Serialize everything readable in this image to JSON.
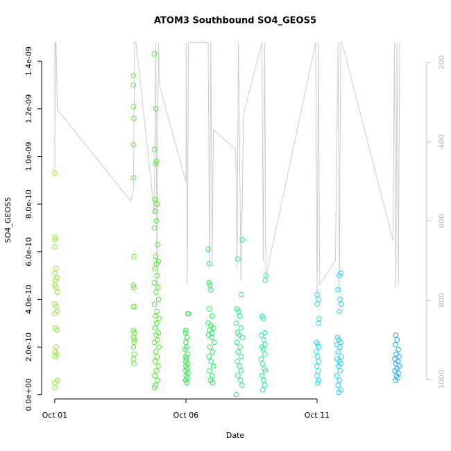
{
  "chart_data": {
    "type": "scatter",
    "title": "ATOM3 Southbound SO4_GEOS5",
    "x_label": "Date",
    "y_label": "SO4_GEOS5",
    "xlim": [
      0.5,
      15.18
    ],
    "ylim": [
      -1.8e-11,
      1.482e-09
    ],
    "y2lim": [
      1049,
      147.5
    ],
    "xticks": [
      {
        "value": 1,
        "label": "Oct 01"
      },
      {
        "value": 6,
        "label": "Oct 06"
      },
      {
        "value": 11,
        "label": "Oct 11"
      }
    ],
    "yticks": [
      {
        "value": 0,
        "label": "0.0e+00"
      },
      {
        "value": 2e-10,
        "label": "2.0e-10"
      },
      {
        "value": 4e-10,
        "label": "4.0e-10"
      },
      {
        "value": 6e-10,
        "label": "6.0e-10"
      },
      {
        "value": 8e-10,
        "label": "8.0e-10"
      },
      {
        "value": 1e-09,
        "label": "1.0e-09"
      },
      {
        "value": 1.2e-09,
        "label": "1.2e-09"
      },
      {
        "value": 1.4e-09,
        "label": "1.4e-09"
      }
    ],
    "y2ticks": [
      200,
      400,
      600,
      800,
      1000
    ],
    "series": [
      {
        "type": "line",
        "axis": "y2",
        "color": "#cccccc",
        "x": [
          1.0,
          1.0,
          1.02,
          1.05,
          1.1,
          3.9,
          4.0,
          4.05,
          3.95,
          4.1,
          4.8,
          4.85,
          4.9,
          4.95,
          5.0,
          6.0,
          6.02,
          6.05,
          6.1,
          6.85,
          6.9,
          6.95,
          7.0,
          7.05,
          7.9,
          7.95,
          8.0,
          8.1,
          8.2,
          8.9,
          8.95,
          9.0,
          9.05,
          10.95,
          11.0,
          11.05,
          11.1,
          11.7,
          11.8,
          11.85,
          11.9,
          11.95,
          13.9,
          13.95,
          14.0,
          14.05,
          14.1,
          14.15
        ],
        "values": [
          150,
          480,
          150,
          150,
          319,
          550,
          520,
          150,
          150,
          150,
          580,
          150,
          770,
          150,
          260,
          500,
          150,
          760,
          150,
          150,
          720,
          150,
          700,
          370,
          420,
          720,
          150,
          750,
          330,
          150,
          700,
          150,
          740,
          150,
          800,
          150,
          760,
          700,
          150,
          780,
          150,
          150,
          650,
          150,
          770,
          150,
          760,
          150
        ]
      },
      {
        "color": "#88ee22",
        "x": [
          1.0,
          1.02,
          1.0,
          1.0,
          1.05,
          1.0,
          1.08,
          1.02,
          1.0,
          1.05,
          1.1,
          1.0,
          1.05,
          1.1,
          1.0,
          1.02,
          1.08,
          1.05,
          1.0,
          1.08,
          1.02,
          1.1,
          1.0,
          1.02
        ],
        "values": [
          9.3e-10,
          6.6e-10,
          6.5e-10,
          6.2e-10,
          5.3e-10,
          5.1e-10,
          4.9e-10,
          4.8e-10,
          4.6e-10,
          4.5e-10,
          4.3e-10,
          3.8e-10,
          3.7e-10,
          3.5e-10,
          3.4e-10,
          2.8e-10,
          2.7e-10,
          2e-10,
          1.8e-10,
          1.7e-10,
          1.6e-10,
          6e-11,
          5e-11,
          3e-11
        ]
      },
      {
        "color": "#5cee22",
        "x": [
          4.0,
          4.0,
          4.0,
          4.02,
          4.0,
          4.0,
          4.02,
          4.0,
          4.02,
          4.0,
          4.05,
          4.0,
          4.03,
          4.0,
          4.05,
          4.02,
          4.0,
          4.04,
          4.0,
          4.02
        ],
        "values": [
          1.34e-09,
          1.3e-09,
          1.21e-09,
          1.16e-09,
          1.05e-09,
          9.1e-10,
          5.8e-10,
          4.6e-10,
          4.5e-10,
          3.7e-10,
          3.7e-10,
          2.7e-10,
          2.6e-10,
          2.4e-10,
          2.3e-10,
          2.2e-10,
          2e-10,
          1.7e-10,
          1.5e-10,
          1.3e-10
        ]
      },
      {
        "color": "#44ee22",
        "x": [
          4.8,
          4.85,
          4.8,
          4.88,
          4.85,
          4.82,
          4.9,
          4.83,
          4.87,
          4.8,
          4.92,
          4.85,
          4.95,
          4.88,
          4.82,
          4.9,
          4.8,
          4.93,
          4.86,
          4.96,
          4.8,
          4.9,
          4.84,
          4.97,
          4.88,
          4.82,
          4.95,
          4.86,
          4.91,
          4.8,
          4.98,
          4.85,
          4.9,
          4.83,
          4.94,
          4.87,
          4.81,
          4.92,
          4.85,
          4.8
        ],
        "values": [
          1.43e-09,
          1.2e-09,
          1.03e-09,
          9.8e-10,
          9.7e-10,
          8.2e-10,
          8e-10,
          7.7e-10,
          7.3e-10,
          7e-10,
          6.3e-10,
          5.8e-10,
          5.6e-10,
          5.5e-10,
          5.3e-10,
          5e-10,
          4.7e-10,
          4.5e-10,
          4.3e-10,
          4e-10,
          3.8e-10,
          3.5e-10,
          3.3e-10,
          3.2e-10,
          3e-10,
          2.8e-10,
          2.6e-10,
          2.5e-10,
          2.3e-10,
          2.2e-10,
          2e-10,
          1.8e-10,
          1.6e-10,
          1.4e-10,
          1.2e-10,
          1e-10,
          8e-11,
          6e-11,
          4e-11,
          3e-11
        ]
      },
      {
        "color": "#22ee44",
        "x": [
          6.1,
          6.08,
          6.0,
          5.98,
          6.05,
          6.0,
          6.03,
          5.97,
          6.06,
          6.0,
          6.02,
          5.98,
          6.07,
          6.0,
          6.04,
          5.97,
          6.08,
          6.01,
          6.05,
          5.99,
          6.03
        ],
        "values": [
          3.4e-10,
          3.4e-10,
          2.7e-10,
          2.6e-10,
          2.4e-10,
          2.2e-10,
          2e-10,
          1.9e-10,
          1.7e-10,
          1.6e-10,
          1.5e-10,
          1.4e-10,
          1.3e-10,
          1.2e-10,
          1.1e-10,
          1e-10,
          9e-11,
          8e-11,
          7e-11,
          6e-11,
          5e-11
        ]
      },
      {
        "color": "#22ee55",
        "x": [
          6.85,
          6.9,
          6.88,
          6.92,
          6.95,
          6.9,
          7.0,
          6.85,
          6.95,
          7.05,
          6.9,
          7.0,
          6.87,
          6.98,
          7.08,
          6.92,
          7.02,
          6.88,
          6.96,
          7.05,
          6.9,
          7.0,
          6.94,
          7.02
        ],
        "values": [
          6.1e-10,
          5.5e-10,
          4.7e-10,
          4.6e-10,
          4.4e-10,
          3.6e-10,
          3.3e-10,
          3e-10,
          2.9e-10,
          2.8e-10,
          2.7e-10,
          2.6e-10,
          2.5e-10,
          2.4e-10,
          2.2e-10,
          2e-10,
          1.8e-10,
          1.6e-10,
          1.4e-10,
          1.2e-10,
          1e-10,
          8e-11,
          6e-11,
          5e-11
        ]
      },
      {
        "color": "#22ee77",
        "x": [
          8.15,
          7.98,
          8.12,
          7.95,
          8.0,
          8.05,
          7.92,
          8.1,
          7.97,
          8.03,
          8.15,
          7.94,
          8.07,
          7.99,
          8.12,
          7.96,
          8.04,
          8.1,
          7.98,
          8.08,
          8.14,
          7.92
        ],
        "values": [
          6.5e-10,
          5.7e-10,
          4.2e-10,
          3.6e-10,
          3.5e-10,
          3.3e-10,
          3e-10,
          2.8e-10,
          2.6e-10,
          2.5e-10,
          2.4e-10,
          2.2e-10,
          2e-10,
          1.8e-10,
          1.6e-10,
          1.4e-10,
          1.2e-10,
          1e-10,
          8e-11,
          6e-11,
          4e-11,
          0.0
        ]
      },
      {
        "color": "#22ee99",
        "x": [
          9.05,
          9.03,
          8.9,
          8.95,
          9.0,
          8.88,
          8.97,
          9.02,
          8.9,
          8.95,
          9.0,
          8.87,
          8.93,
          8.98,
          9.03,
          8.9,
          8.96,
          9.0,
          8.93
        ],
        "values": [
          5e-10,
          4.8e-10,
          3.3e-10,
          3.2e-10,
          2.6e-10,
          2.5e-10,
          2.3e-10,
          2.1e-10,
          2e-10,
          1.9e-10,
          1.7e-10,
          1.5e-10,
          1.3e-10,
          1.1e-10,
          1e-10,
          8e-11,
          6e-11,
          4e-11,
          2e-11
        ]
      },
      {
        "color": "#22ddee",
        "x": [
          11.0,
          11.05,
          11.0,
          11.08,
          11.05,
          10.98,
          11.03,
          11.07,
          10.97,
          11.02,
          11.06,
          10.99,
          11.04,
          11.0,
          11.06,
          11.02
        ],
        "values": [
          4.2e-10,
          4e-10,
          3.8e-10,
          3.2e-10,
          3e-10,
          2.2e-10,
          2.1e-10,
          2e-10,
          1.8e-10,
          1.6e-10,
          1.4e-10,
          1.2e-10,
          1e-10,
          8e-11,
          6e-11,
          5e-11
        ]
      },
      {
        "color": "#22ccff",
        "x": [
          11.9,
          11.85,
          11.8,
          11.88,
          11.92,
          11.85,
          11.78,
          11.83,
          11.9,
          11.75,
          11.87,
          11.8,
          11.93,
          11.77,
          11.85,
          11.9,
          11.82,
          11.88,
          11.75,
          11.85,
          11.8,
          11.9,
          11.83
        ],
        "values": [
          5.1e-10,
          5e-10,
          4.4e-10,
          4e-10,
          3.8e-10,
          3.5e-10,
          2.4e-10,
          2.3e-10,
          2.2e-10,
          2.1e-10,
          2e-10,
          1.8e-10,
          1.6e-10,
          1.5e-10,
          1.4e-10,
          1.3e-10,
          1.2e-10,
          1e-10,
          8e-11,
          6e-11,
          4e-11,
          2e-11,
          1e-11
        ]
      },
      {
        "color": "#22aaff",
        "x": [
          14.0,
          14.05,
          13.98,
          14.1,
          14.02,
          14.12,
          13.96,
          14.08,
          14.0,
          14.14,
          14.04,
          13.97,
          14.1,
          14.02,
          14.07,
          13.99
        ],
        "values": [
          2.5e-10,
          2.3e-10,
          2.1e-10,
          1.9e-10,
          1.7e-10,
          1.6e-10,
          1.5e-10,
          1.4e-10,
          1.3e-10,
          1.2e-10,
          1.1e-10,
          1e-10,
          9e-11,
          8e-11,
          7e-11,
          6e-11
        ]
      }
    ]
  }
}
